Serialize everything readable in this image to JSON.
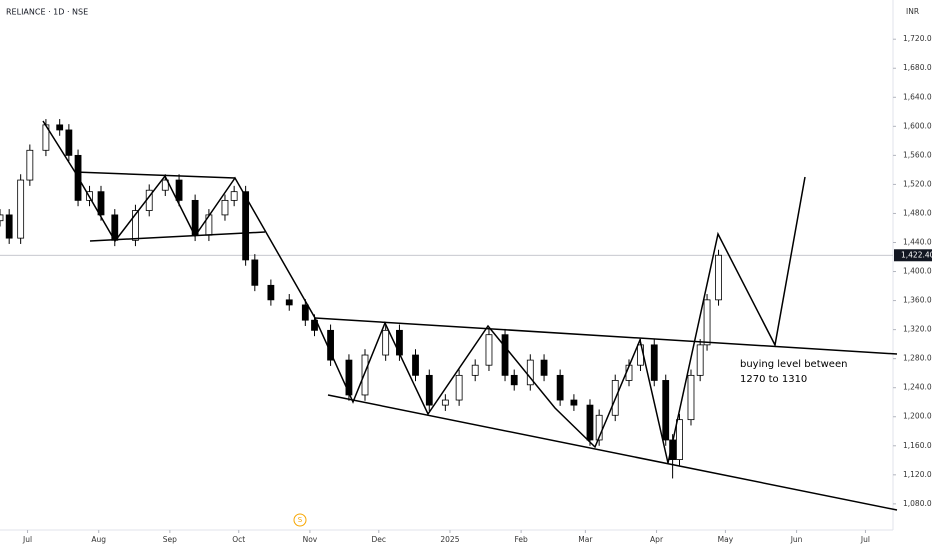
{
  "chart_data": {
    "type": "candlestick",
    "title": "RELIANCE · 1D · NSE",
    "currency": "INR",
    "x": [
      -12,
      -8,
      -3,
      1,
      8,
      14,
      18,
      22,
      27,
      32,
      38,
      47,
      53,
      60,
      66,
      73,
      79,
      86,
      90,
      95,
      99,
      106,
      114,
      121,
      125,
      132,
      140,
      147,
      156,
      162,
      169,
      175,
      182,
      188,
      195,
      201,
      208,
      212,
      219,
      225,
      232,
      238,
      245,
      249,
      256,
      262,
      267,
      273,
      278,
      281,
      284,
      289,
      293,
      296,
      301
    ],
    "open": [
      1470,
      1478,
      1446,
      1526,
      1567,
      1602,
      1595,
      1560,
      1498,
      1510,
      1478,
      1443,
      1484,
      1512,
      1526,
      1498,
      1450,
      1478,
      1498,
      1510,
      1416,
      1381,
      1361,
      1354,
      1333,
      1319,
      1278,
      1230,
      1285,
      1319,
      1285,
      1257,
      1216,
      1223,
      1257,
      1271,
      1313,
      1257,
      1244,
      1278,
      1257,
      1223,
      1216,
      1168,
      1202,
      1250,
      1271,
      1299,
      1250,
      1168,
      1141,
      1196,
      1257,
      1299,
      1361
    ],
    "high": [
      1486,
      1486,
      1534,
      1575,
      1610,
      1610,
      1603,
      1568,
      1518,
      1518,
      1486,
      1492,
      1520,
      1534,
      1534,
      1506,
      1486,
      1506,
      1518,
      1518,
      1424,
      1389,
      1369,
      1362,
      1341,
      1327,
      1286,
      1293,
      1327,
      1327,
      1293,
      1265,
      1231,
      1265,
      1279,
      1321,
      1321,
      1265,
      1286,
      1286,
      1265,
      1231,
      1224,
      1210,
      1258,
      1279,
      1307,
      1307,
      1258,
      1176,
      1204,
      1265,
      1307,
      1369,
      1430
    ],
    "low": [
      1462,
      1438,
      1438,
      1518,
      1559,
      1587,
      1552,
      1490,
      1490,
      1470,
      1435,
      1435,
      1476,
      1504,
      1490,
      1442,
      1442,
      1470,
      1490,
      1408,
      1373,
      1353,
      1346,
      1325,
      1311,
      1270,
      1222,
      1222,
      1277,
      1277,
      1249,
      1208,
      1208,
      1215,
      1249,
      1263,
      1249,
      1236,
      1236,
      1249,
      1215,
      1208,
      1160,
      1160,
      1194,
      1242,
      1263,
      1242,
      1160,
      1115,
      1133,
      1188,
      1249,
      1291,
      1353
    ],
    "close": [
      1478,
      1446,
      1526,
      1567,
      1602,
      1595,
      1560,
      1498,
      1510,
      1478,
      1443,
      1484,
      1512,
      1526,
      1498,
      1450,
      1478,
      1498,
      1510,
      1416,
      1381,
      1361,
      1354,
      1333,
      1319,
      1278,
      1230,
      1285,
      1319,
      1285,
      1257,
      1216,
      1223,
      1257,
      1271,
      1313,
      1257,
      1244,
      1278,
      1257,
      1223,
      1216,
      1168,
      1202,
      1250,
      1271,
      1299,
      1250,
      1168,
      1141,
      1196,
      1257,
      1299,
      1361,
      1422.4
    ],
    "up_color": "#ffffff",
    "down_color": "#000000",
    "xlim": [
      -12,
      377
    ],
    "xticks": [
      {
        "value": 0,
        "label": "Jul"
      },
      {
        "value": 31,
        "label": "Aug"
      },
      {
        "value": 62,
        "label": "Sep"
      },
      {
        "value": 92,
        "label": "Oct"
      },
      {
        "value": 123,
        "label": "Nov"
      },
      {
        "value": 153,
        "label": "Dec"
      },
      {
        "value": 184,
        "label": "2025"
      },
      {
        "value": 215,
        "label": "Feb"
      },
      {
        "value": 243,
        "label": "Mar"
      },
      {
        "value": 274,
        "label": "Apr"
      },
      {
        "value": 304,
        "label": "May"
      },
      {
        "value": 335,
        "label": "Jun"
      },
      {
        "value": 365,
        "label": "Jul"
      }
    ],
    "ylim": [
      1044,
      1774
    ],
    "yticks": [
      {
        "value": 1080,
        "label": "1,080.00"
      },
      {
        "value": 1120,
        "label": "1,120.00"
      },
      {
        "value": 1160,
        "label": "1,160.00"
      },
      {
        "value": 1200,
        "label": "1,200.00"
      },
      {
        "value": 1240,
        "label": "1,240.00"
      },
      {
        "value": 1280,
        "label": "1,280.00"
      },
      {
        "value": 1320,
        "label": "1,320.00"
      },
      {
        "value": 1360,
        "label": "1,360.00"
      },
      {
        "value": 1400,
        "label": "1,400.00"
      },
      {
        "value": 1440,
        "label": "1,440.00"
      },
      {
        "value": 1480,
        "label": "1,480.00"
      },
      {
        "value": 1520,
        "label": "1,520.00"
      },
      {
        "value": 1560,
        "label": "1,560.00"
      },
      {
        "value": 1600,
        "label": "1,600.00"
      },
      {
        "value": 1640,
        "label": "1,640.00"
      },
      {
        "value": 1680,
        "label": "1,680.00"
      },
      {
        "value": 1720,
        "label": "1,720.00"
      }
    ],
    "last_price": {
      "value": 1422.4,
      "label": "1,422.40"
    },
    "annotation": [
      "buying level between",
      "1270 to 1310"
    ],
    "event_marker": "S"
  }
}
